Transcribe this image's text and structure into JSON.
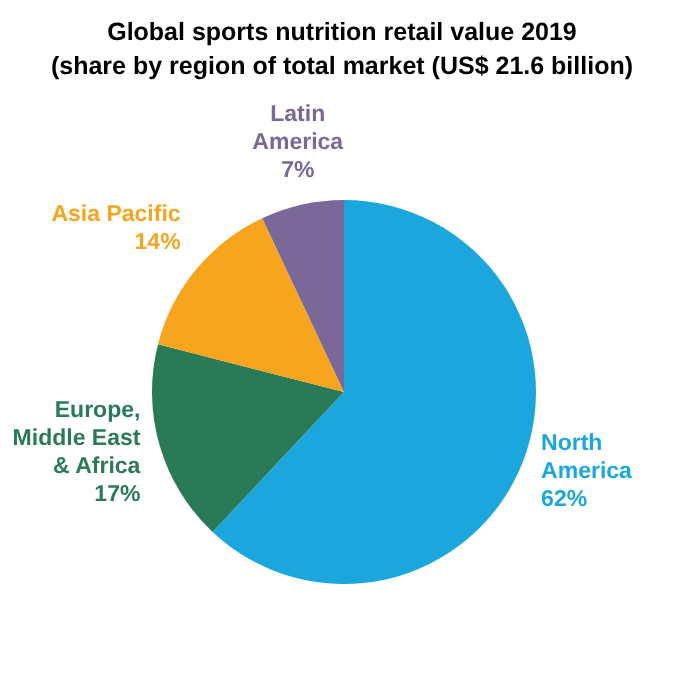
{
  "chart_data": {
    "type": "pie",
    "title": "Global sports nutrition retail value 2019",
    "subtitle": "(share by region of total market (US$ 21.6 billion)",
    "categories": [
      "North America",
      "Europe, Middle East & Africa",
      "Asia Pacific",
      "Latin America"
    ],
    "values": [
      62,
      17,
      14,
      7
    ],
    "colors": [
      "#1ba7de",
      "#2a7a58",
      "#f7a51f",
      "#7a6898"
    ],
    "value_labels": [
      "62%",
      "17%",
      "14%",
      "7%"
    ]
  }
}
